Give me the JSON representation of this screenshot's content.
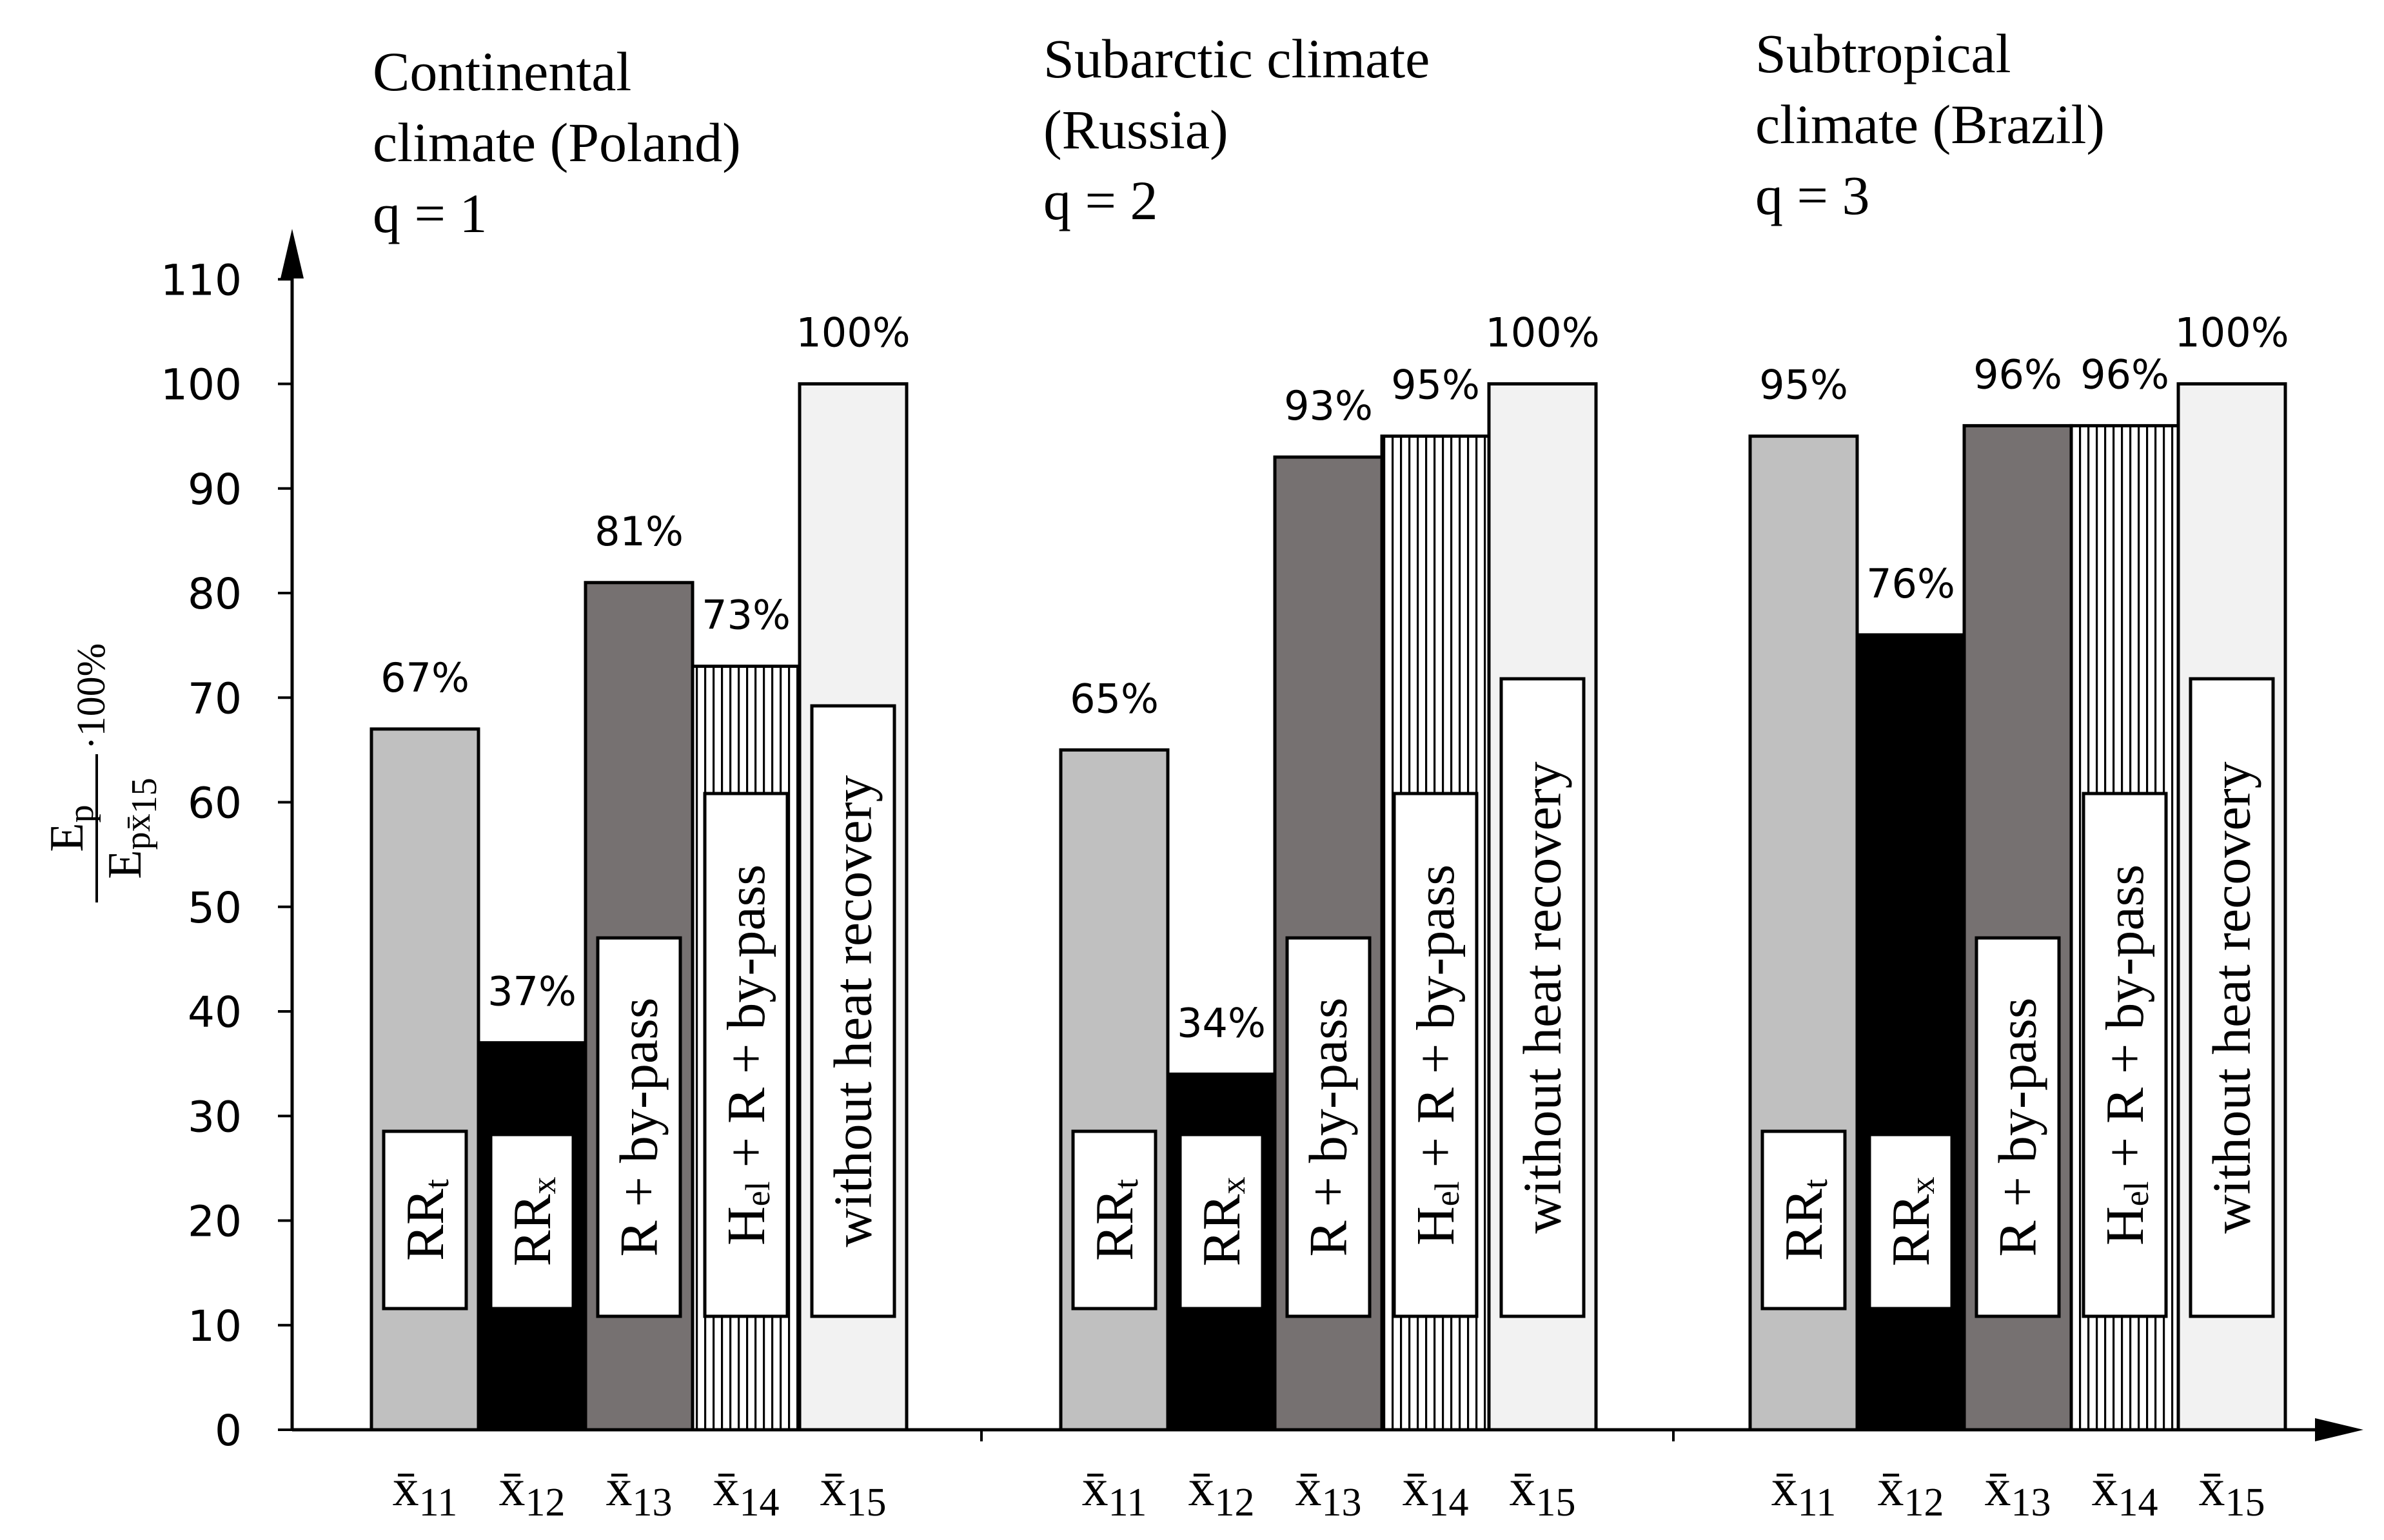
{
  "chart_data": {
    "type": "bar",
    "ylabel": {
      "numerator": "E",
      "numerator_sub": "p",
      "denominator": "E",
      "denominator_sub": "px̄",
      "denominator_sub2": "15",
      "factor": "·100%"
    },
    "ylim": [
      0,
      110
    ],
    "yticks": [
      "0",
      "10",
      "20",
      "30",
      "40",
      "50",
      "60",
      "70",
      "80",
      "90",
      "100",
      "110"
    ],
    "categories": [
      {
        "base": "x",
        "sub": "11"
      },
      {
        "base": "x",
        "sub": "12"
      },
      {
        "base": "x",
        "sub": "13"
      },
      {
        "base": "x",
        "sub": "14"
      },
      {
        "base": "x",
        "sub": "15"
      }
    ],
    "groups": [
      {
        "title_lines": [
          "Continental",
          "climate (Poland)",
          "q = 1"
        ],
        "values": [
          67,
          37,
          81,
          73,
          100
        ],
        "labels": [
          "67%",
          "37%",
          "81%",
          "73%",
          "100%"
        ]
      },
      {
        "title_lines": [
          "Subarctic climate",
          "(Russia)",
          "q = 2"
        ],
        "values": [
          65,
          34,
          93,
          95,
          100
        ],
        "labels": [
          "65%",
          "34%",
          "93%",
          "95%",
          "100%"
        ]
      },
      {
        "title_lines": [
          "Subtropical",
          "climate (Brazil)",
          "q = 3"
        ],
        "values": [
          95,
          76,
          96,
          96,
          100
        ],
        "labels": [
          "95%",
          "76%",
          "96%",
          "96%",
          "100%"
        ]
      }
    ],
    "series": [
      {
        "name_base": "RR",
        "name_sub": "t",
        "color": "#c0c0c0",
        "pattern": "solid"
      },
      {
        "name_base": "RR",
        "name_sub": "x",
        "color": "#000000",
        "pattern": "solid"
      },
      {
        "name": "R + by-pass",
        "color": "#767171",
        "pattern": "solid"
      },
      {
        "name_base": "H",
        "name_sub": "el",
        "name_rest": " + R + by-pass",
        "color": "#ffffff",
        "pattern": "vertical-lines"
      },
      {
        "name": "without heat recovery",
        "color": "#f2f2f2",
        "pattern": "solid"
      }
    ]
  }
}
